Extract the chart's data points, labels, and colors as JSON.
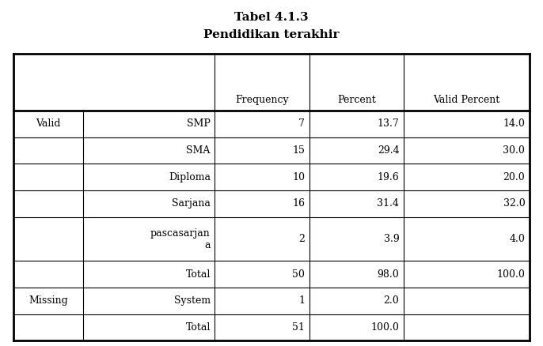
{
  "title_line1": "Tabel 4.1.3",
  "title_line2": "Pendidikan terakhir",
  "col_headers": [
    "Frequency",
    "Percent",
    "Valid Percent"
  ],
  "rows": [
    [
      "Valid",
      "SMP",
      "7",
      "13.7",
      "14.0"
    ],
    [
      "",
      "SMA",
      "15",
      "29.4",
      "30.0"
    ],
    [
      "",
      "Diploma",
      "10",
      "19.6",
      "20.0"
    ],
    [
      "",
      "Sarjana",
      "16",
      "31.4",
      "32.0"
    ],
    [
      "",
      "pascasarjan\na",
      "2",
      "3.9",
      "4.0"
    ],
    [
      "",
      "Total",
      "50",
      "98.0",
      "100.0"
    ],
    [
      "Missing",
      "System",
      "1",
      "2.0",
      ""
    ],
    [
      "",
      "Total",
      "51",
      "100.0",
      ""
    ]
  ],
  "background_color": "#ffffff",
  "text_color": "#000000",
  "title_fontsize": 11,
  "header_fontsize": 9,
  "cell_fontsize": 9,
  "fig_width": 6.86,
  "fig_height": 4.38,
  "dpi": 100
}
